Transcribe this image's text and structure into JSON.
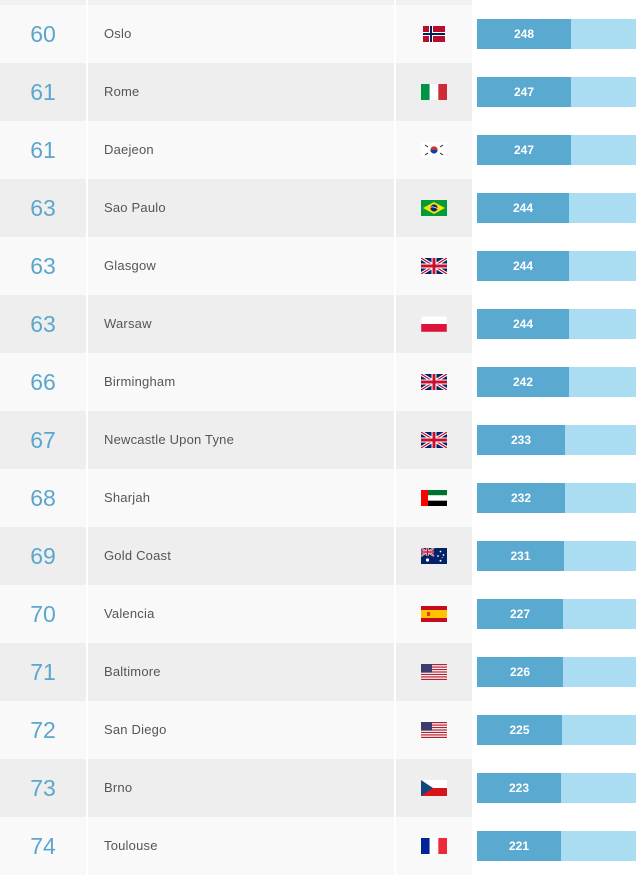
{
  "colors": {
    "rank_text": "#5aa6cf",
    "bar_fill": "#5aa9d0",
    "bar_track": "#aadcf2",
    "row_light": "#f9f9f9",
    "row_dark": "#eeeeee"
  },
  "score_scale_max": 420,
  "rows": [
    {
      "rank": "60",
      "city": "Oslo",
      "flag": "norway-flag-icon",
      "country_code": "NO",
      "score": 248
    },
    {
      "rank": "61",
      "city": "Rome",
      "flag": "italy-flag-icon",
      "country_code": "IT",
      "score": 247
    },
    {
      "rank": "61",
      "city": "Daejeon",
      "flag": "south-korea-flag-icon",
      "country_code": "KR",
      "score": 247
    },
    {
      "rank": "63",
      "city": "Sao Paulo",
      "flag": "brazil-flag-icon",
      "country_code": "BR",
      "score": 244
    },
    {
      "rank": "63",
      "city": "Glasgow",
      "flag": "uk-flag-icon",
      "country_code": "GB",
      "score": 244
    },
    {
      "rank": "63",
      "city": "Warsaw",
      "flag": "poland-flag-icon",
      "country_code": "PL",
      "score": 244
    },
    {
      "rank": "66",
      "city": "Birmingham",
      "flag": "uk-flag-icon",
      "country_code": "GB",
      "score": 242
    },
    {
      "rank": "67",
      "city": "Newcastle Upon Tyne",
      "flag": "uk-flag-icon",
      "country_code": "GB",
      "score": 233
    },
    {
      "rank": "68",
      "city": "Sharjah",
      "flag": "uae-flag-icon",
      "country_code": "AE",
      "score": 232
    },
    {
      "rank": "69",
      "city": "Gold Coast",
      "flag": "australia-flag-icon",
      "country_code": "AU",
      "score": 231
    },
    {
      "rank": "70",
      "city": "Valencia",
      "flag": "spain-flag-icon",
      "country_code": "ES",
      "score": 227
    },
    {
      "rank": "71",
      "city": "Baltimore",
      "flag": "usa-flag-icon",
      "country_code": "US",
      "score": 226
    },
    {
      "rank": "72",
      "city": "San Diego",
      "flag": "usa-flag-icon",
      "country_code": "US",
      "score": 225
    },
    {
      "rank": "73",
      "city": "Brno",
      "flag": "czech-flag-icon",
      "country_code": "CZ",
      "score": 223
    },
    {
      "rank": "74",
      "city": "Toulouse",
      "flag": "france-flag-icon",
      "country_code": "FR",
      "score": 221
    }
  ]
}
